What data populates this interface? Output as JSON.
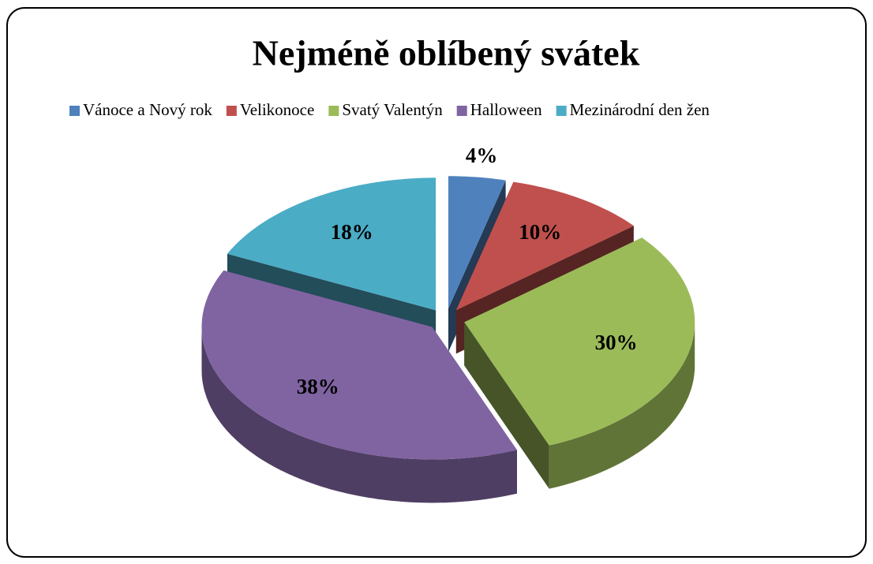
{
  "chart_data": {
    "type": "pie3d",
    "title": "Nejméně oblíbený svátek",
    "categories": [
      "Vánoce a Nový rok",
      "Velikonoce",
      "Svatý Valentýn",
      "Halloween",
      "Mezinárodní den žen"
    ],
    "values": [
      4,
      10,
      30,
      38,
      18
    ],
    "value_labels": [
      "4%",
      "10%",
      "30%",
      "38%",
      "18%"
    ],
    "colors": [
      "#4f81bd",
      "#c0504d",
      "#9bbb59",
      "#8064a2",
      "#4bacc6"
    ],
    "legend": "top"
  }
}
